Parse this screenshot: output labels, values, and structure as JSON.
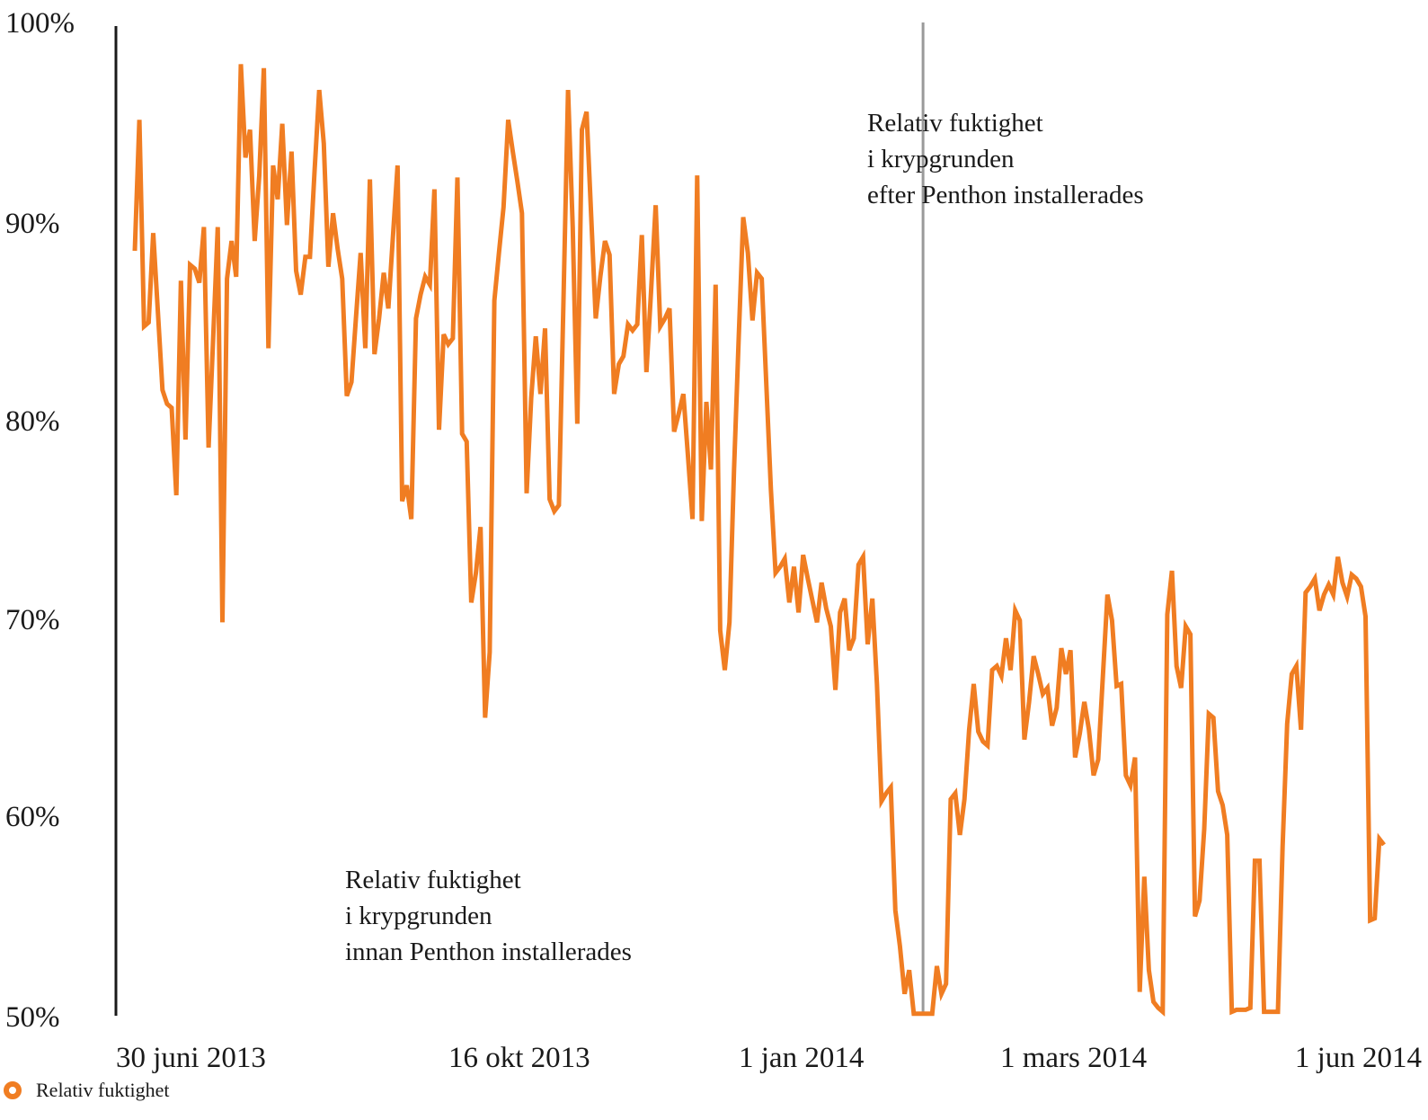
{
  "chart_data": {
    "type": "line",
    "title": "",
    "xlabel": "",
    "ylabel": "",
    "ylim": [
      50,
      100
    ],
    "y_ticks": [
      "100%",
      "90%",
      "80%",
      "70%",
      "60%",
      "50%"
    ],
    "x_ticks": [
      "30 juni 2013",
      "16 okt 2013",
      "1 jan 2014",
      "1 mars 2014",
      "1 jun 2014"
    ],
    "grid": false,
    "legend_position": "bottom-left",
    "line_color": "#f07d22",
    "series": [
      {
        "name": "Relativ fuktighet",
        "start_date": "2013-06-30",
        "step_days": 1,
        "values": [
          88.5,
          95.1,
          84.7,
          84.9,
          89.4,
          85.5,
          81.5,
          80.8,
          80.6,
          76.2,
          87,
          79,
          87.8,
          87.6,
          86.9,
          89.7,
          78.6,
          84.1,
          89.7,
          69.8,
          87.1,
          89,
          87.2,
          97.9,
          93.2,
          94.6,
          89,
          92.3,
          97.7,
          83.6,
          92.8,
          91.1,
          94.9,
          89.8,
          93.5,
          87.5,
          86.3,
          88.2,
          88.2,
          92.5,
          96.6,
          93.9,
          87.7,
          90.4,
          88.6,
          87.1,
          81.2,
          81.9,
          85.2,
          88.4,
          83.6,
          92.1,
          83.3,
          85.1,
          87.4,
          85.6,
          89.2,
          92.8,
          75.9,
          76.7,
          75,
          85.1,
          86.3,
          87.2,
          86.8,
          91.6,
          79.5,
          84.3,
          83.8,
          84.1,
          92.2,
          79.3,
          78.9,
          70.8,
          72.3,
          74.6,
          65,
          68.3,
          86,
          88.4,
          90.7,
          95.1,
          93.5,
          92,
          90.4,
          76.3,
          81.1,
          84.2,
          81.3,
          84.6,
          76,
          75.4,
          75.7,
          86,
          96.6,
          89.7,
          79.8,
          94.6,
          95.5,
          90.3,
          85.1,
          87.2,
          89,
          88.3,
          81.3,
          82.8,
          83.2,
          84.8,
          84.5,
          84.8,
          89.3,
          82.4,
          86.5,
          90.8,
          84.7,
          85.1,
          85.6,
          79.4,
          80.3,
          81.3,
          78.2,
          75,
          92.3,
          74.9,
          80.9,
          77.5,
          86.8,
          69.4,
          67.4,
          69.8,
          77.5,
          84,
          90.2,
          88.4,
          85,
          87.4,
          87.1,
          81.8,
          76.5,
          72.3,
          72.6,
          73,
          70.8,
          72.6,
          70.3,
          73.2,
          72,
          70.9,
          69.8,
          71.8,
          70.5,
          69.6,
          66.4,
          70.3,
          71,
          68.4,
          69,
          72.7,
          73.1,
          68.7,
          71,
          66.7,
          60.8,
          61.2,
          61.5,
          55.3,
          53.5,
          51.1,
          52.3,
          50.1,
          50.1,
          50.1,
          50.1,
          50.1,
          52.5,
          51.1,
          51.6,
          60.9,
          61.2,
          59.1,
          60.9,
          64.4,
          66.7,
          64.3,
          63.8,
          63.6,
          67.4,
          67.6,
          67.1,
          69,
          67.4,
          70.4,
          69.9,
          63.9,
          65.8,
          68.1,
          67.2,
          66.2,
          66.5,
          64.6,
          65.5,
          68.5,
          67.2,
          68.4,
          63,
          64.2,
          65.8,
          64.4,
          62.1,
          62.9,
          67,
          71.2,
          69.9,
          66.6,
          66.7,
          62.1,
          61.6,
          63,
          51.2,
          57,
          52.3,
          50.7,
          50.4,
          50.2,
          70.2,
          72.4,
          67.6,
          66.5,
          69.6,
          69.2,
          55,
          55.8,
          59.4,
          65.2,
          65,
          61.3,
          60.6,
          59.1,
          50.2,
          50.3,
          50.3,
          50.3,
          50.4,
          57.8,
          57.8,
          50.2,
          50.2,
          50.2,
          50.2,
          58.5,
          64.7,
          67.2,
          67.6,
          64.4,
          71.3,
          71.6,
          72,
          70.4,
          71.2,
          71.7,
          71.2,
          73.1,
          71.8,
          71.1,
          72.2,
          72,
          71.6,
          70.1,
          54.8,
          54.9,
          58.9,
          58.6
        ]
      }
    ],
    "annotations": [
      {
        "lines": [
          "Relativ fuktighet",
          "i krypgrunden",
          "efter Penthon installerades"
        ]
      },
      {
        "lines": [
          "Relativ fuktighet",
          "i krypgrunden",
          "innan Penthon installerades"
        ]
      }
    ],
    "reference_lines": [
      {
        "date": "2013-12-18",
        "color": "#9a9a9a"
      }
    ],
    "legend": {
      "label": "Relativ fuktighet"
    }
  }
}
